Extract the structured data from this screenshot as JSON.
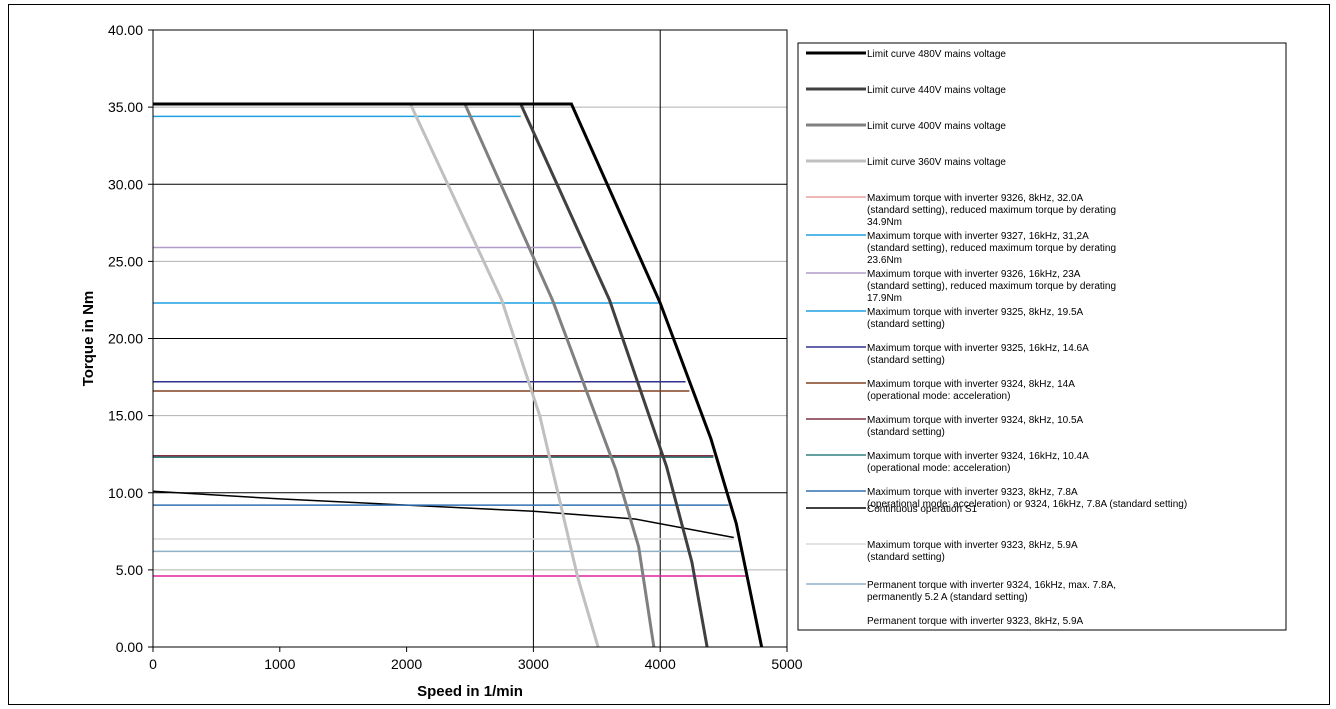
{
  "chart_data": {
    "type": "line",
    "title": "",
    "xlabel": "Speed in 1/min",
    "ylabel": "Torque in Nm",
    "xlim": [
      0,
      5000
    ],
    "ylim": [
      0,
      40
    ],
    "x_ticks": [
      "0",
      "1000",
      "2000",
      "3000",
      "4000",
      "5000"
    ],
    "y_ticks": [
      "0.00",
      "5.00",
      "10.00",
      "15.00",
      "20.00",
      "25.00",
      "30.00",
      "35.00",
      "40.00"
    ],
    "grid": "major y gridlines; vertical lines at 3000 and 4000",
    "legend_position": "right",
    "series": [
      {
        "name": "Limit curve 480V mains voltage",
        "color": "#000000",
        "width": 3,
        "x": [
          0,
          3300,
          4000,
          4400,
          4600,
          4800
        ],
        "y": [
          35.2,
          35.2,
          22.3,
          13.5,
          8.0,
          0
        ]
      },
      {
        "name": "Limit curve 440V mains voltage",
        "color": "#404040",
        "width": 3,
        "x": [
          2900,
          3600,
          4050,
          4250,
          4370
        ],
        "y": [
          35.2,
          22.5,
          11.7,
          5.5,
          0
        ]
      },
      {
        "name": "Limit curve 400V mains voltage",
        "color": "#808080",
        "width": 3,
        "x": [
          2460,
          3150,
          3650,
          3830,
          3950
        ],
        "y": [
          35.2,
          22.5,
          11.5,
          6.5,
          0
        ]
      },
      {
        "name": "Limit curve 360V mains voltage",
        "color": "#c0c0c0",
        "width": 3,
        "x": [
          2030,
          2750,
          3050,
          3350,
          3510
        ],
        "y": [
          35.2,
          22.5,
          15.0,
          4.5,
          0
        ]
      },
      {
        "name": "Maximum torque with inverter 9326, 8kHz, 32.0A\n(standard setting), reduced maximum torque by derating\n34.9Nm",
        "color": "#e8a0a0",
        "width": 1.5,
        "x": [
          0,
          2900
        ],
        "y": [
          35.2,
          35.2
        ]
      },
      {
        "name": "Maximum torque with inverter 9327, 16kHz, 31,2A\n(standard setting), reduced maximum torque by derating\n23.6Nm",
        "color": "#1ea0e0",
        "width": 1.5,
        "x": [
          0,
          2900
        ],
        "y": [
          34.4,
          34.4
        ]
      },
      {
        "name": "Maximum torque with inverter 9326, 16kHz, 23A\n(standard setting), reduced maximum torque by derating\n17.9Nm",
        "color": "#b09cc8",
        "width": 1.5,
        "x": [
          0,
          3380
        ],
        "y": [
          25.9,
          25.9
        ]
      },
      {
        "name": "Maximum torque with inverter 9325, 8kHz, 19.5A\n(standard setting)",
        "color": "#1ea0e0",
        "width": 1.5,
        "x": [
          0,
          4000
        ],
        "y": [
          22.3,
          22.3
        ]
      },
      {
        "name": "Maximum torque with inverter 9325, 16kHz, 14.6A\n(standard setting)",
        "color": "#303090",
        "width": 1.5,
        "x": [
          0,
          4200
        ],
        "y": [
          17.2,
          17.2
        ]
      },
      {
        "name": "Maximum torque with inverter 9324, 8kHz, 14A\n(operational mode: acceleration)",
        "color": "#804020",
        "width": 1.5,
        "x": [
          0,
          4230
        ],
        "y": [
          16.6,
          16.6
        ]
      },
      {
        "name": "Maximum torque with inverter 9324, 8kHz, 10.5A\n(standard setting)",
        "color": "#803040",
        "width": 1.5,
        "x": [
          0,
          4420
        ],
        "y": [
          12.4,
          12.4
        ]
      },
      {
        "name": "Maximum torque with inverter 9324, 16kHz, 10.4A\n(operational mode: acceleration)",
        "color": "#308080",
        "width": 1.5,
        "x": [
          0,
          4420
        ],
        "y": [
          12.3,
          12.3
        ]
      },
      {
        "name": "Maximum torque with inverter 9323, 8kHz, 7.8A\n(operational mode: acceleration) or 9324, 16kHz, 7.8A (standard setting)",
        "color": "#3070b0",
        "width": 1.5,
        "x": [
          0,
          4540
        ],
        "y": [
          9.2,
          9.2
        ]
      },
      {
        "name": "Continuous operation S1",
        "color": "#000000",
        "width": 1.5,
        "x": [
          0,
          1000,
          2000,
          3000,
          3800,
          4580
        ],
        "y": [
          10.1,
          9.6,
          9.2,
          8.8,
          8.3,
          7.1
        ]
      },
      {
        "name": "Maximum torque with inverter 9323, 8kHz, 5.9A\n(standard setting)",
        "color": "#d8d8d8",
        "width": 1.5,
        "x": [
          0,
          4580
        ],
        "y": [
          7.0,
          7.0
        ]
      },
      {
        "name": "Permanent torque with inverter 9324, 16kHz, max. 7.8A,\npermanently 5.2 A (standard setting)",
        "color": "#90b0c8",
        "width": 1.5,
        "x": [
          0,
          4640
        ],
        "y": [
          6.2,
          6.2
        ]
      },
      {
        "name": "Permanent torque with inverter 9323, 8kHz, 5.9A",
        "color": "#e020a0",
        "width": 1.5,
        "x": [
          0,
          4680
        ],
        "y": [
          4.6,
          4.6
        ]
      }
    ]
  }
}
